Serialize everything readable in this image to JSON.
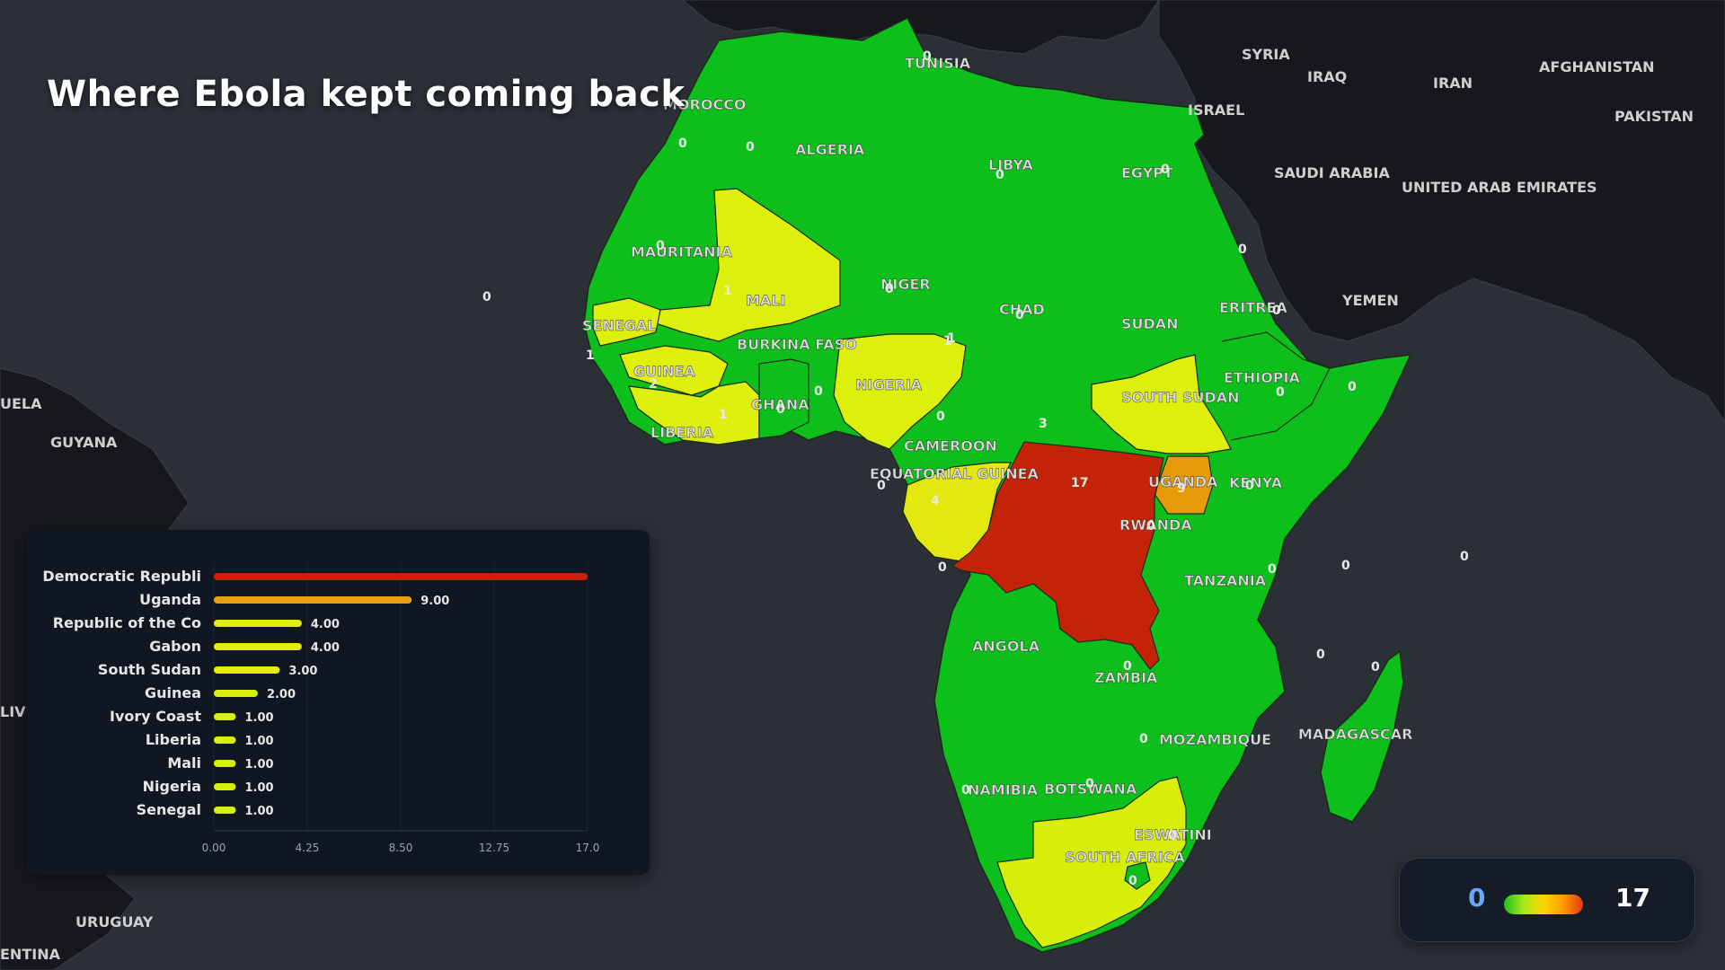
{
  "title": "Where Ebola kept coming back",
  "legend": {
    "min": "0",
    "max": "17"
  },
  "colors": {
    "ocean": "#2b2f36",
    "land_other": "#16181c",
    "zero": "#0dbf1a",
    "one": "#ddf00c",
    "two": "#d6ee0a",
    "three_four": "#e4e80e",
    "nine": "#e69a0a",
    "seventeen": "#c32407",
    "panel_bg": "#111722"
  },
  "map": {
    "countries": [
      {
        "name": "TUNISIA",
        "value": "0"
      },
      {
        "name": "MOROCCO",
        "value": "0"
      },
      {
        "name": "ALGERIA",
        "value": "0"
      },
      {
        "name": "LIBYA",
        "value": "0"
      },
      {
        "name": "EGYPT",
        "value": "0"
      },
      {
        "name": "MAURITANIA",
        "value": "0"
      },
      {
        "name": "MALI",
        "value": "1"
      },
      {
        "name": "NIGER",
        "value": "0"
      },
      {
        "name": "CHAD",
        "value": "0"
      },
      {
        "name": "SUDAN",
        "value": "0"
      },
      {
        "name": "ERITREA",
        "value": "0"
      },
      {
        "name": "SENEGAL",
        "value": "1"
      },
      {
        "name": "GUINEA",
        "value": "2"
      },
      {
        "name": "BURKINA FASO",
        "value": "0"
      },
      {
        "name": "GHANA",
        "value": "0"
      },
      {
        "name": "NIGERIA",
        "value": "1"
      },
      {
        "name": "LIBERIA",
        "value": "1"
      },
      {
        "name": "CAMEROON",
        "value": "0"
      },
      {
        "name": "SOUTH SUDAN",
        "value": "3"
      },
      {
        "name": "ETHIOPIA",
        "value": "0"
      },
      {
        "name": "EQUATORIAL GUINEA",
        "value": "0"
      },
      {
        "name": "UGANDA",
        "value": "9"
      },
      {
        "name": "KENYA",
        "value": "0"
      },
      {
        "name": "RWANDA",
        "value": "0"
      },
      {
        "name": "TANZANIA",
        "value": "0"
      },
      {
        "name": "ANGOLA",
        "value": "0"
      },
      {
        "name": "ZAMBIA",
        "value": "0"
      },
      {
        "name": "MOZAMBIQUE",
        "value": "0"
      },
      {
        "name": "MADAGASCAR",
        "value": "0"
      },
      {
        "name": "NAMIBIA",
        "value": "0"
      },
      {
        "name": "BOTSWANA",
        "value": "0"
      },
      {
        "name": "ESWATINI",
        "value": "0"
      },
      {
        "name": "SOUTH AFRICA",
        "value": "0"
      }
    ],
    "other_labels": [
      "SYRIA",
      "IRAQ",
      "IRAN",
      "AFGHANISTAN",
      "ISRAEL",
      "PAKISTAN",
      "SAUDI ARABIA",
      "UNITED ARAB EMIRATES",
      "YEMEN",
      "UELA",
      "GUYANA",
      "LIVI",
      "URUGUAY",
      "ENTINA"
    ],
    "extra_values": [
      "17",
      "4",
      "1",
      "0",
      "0",
      "0",
      "0",
      "0"
    ]
  },
  "chart_data": {
    "type": "bar",
    "orientation": "horizontal",
    "categories": [
      "Democratic Republi",
      "Uganda",
      "Republic of the Co",
      "Gabon",
      "South Sudan",
      "Guinea",
      "Ivory Coast",
      "Liberia",
      "Mali",
      "Nigeria",
      "Senegal"
    ],
    "values": [
      17,
      9,
      4,
      4,
      3,
      2,
      1,
      1,
      1,
      1,
      1
    ],
    "value_labels": [
      "",
      "9.00",
      "4.00",
      "4.00",
      "3.00",
      "2.00",
      "1.00",
      "1.00",
      "1.00",
      "1.00",
      "1.00"
    ],
    "xlim": [
      0,
      17
    ],
    "xticks": [
      "0.00",
      "4.25",
      "8.50",
      "12.75",
      "17.0"
    ],
    "bar_colors": [
      "#c8230a",
      "#e6a012",
      "#e5ec0c",
      "#e5ec0c",
      "#e5ec0c",
      "#d8ef0c",
      "#d6f00a",
      "#d6f00a",
      "#d6f00a",
      "#d6f00a",
      "#d6f00a"
    ]
  }
}
